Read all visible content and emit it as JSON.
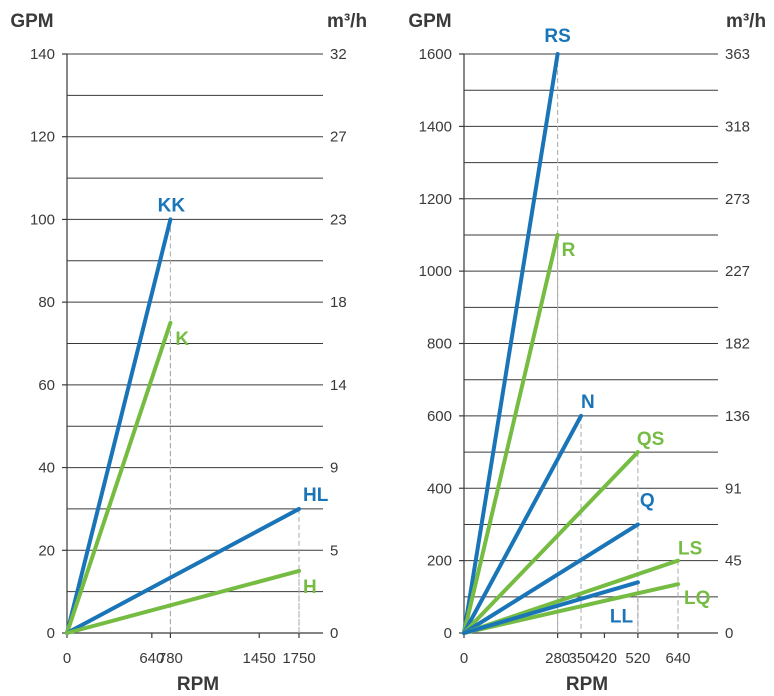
{
  "colors": {
    "blue": "#1a75b8",
    "green": "#76bc43",
    "text": "#3a3a3a"
  },
  "chart_data": [
    {
      "type": "line",
      "ylabel_left": "GPM",
      "ylabel_right": "m³/h",
      "xlabel": "RPM",
      "ylim": [
        0,
        140
      ],
      "xlim": [
        0,
        1750
      ],
      "left_ticks": [
        "0",
        "20",
        "40",
        "60",
        "80",
        "100",
        "120",
        "140"
      ],
      "right_ticks": [
        "0",
        "5",
        "9",
        "14",
        "18",
        "23",
        "27",
        "32"
      ],
      "x_ticks": [
        {
          "value": 0,
          "label": "0"
        },
        {
          "value": 640,
          "label": "640"
        },
        {
          "value": 780,
          "label": "780"
        },
        {
          "value": 1450,
          "label": "1450"
        },
        {
          "value": 1750,
          "label": "1750"
        }
      ],
      "series": [
        {
          "name": "KK",
          "color": "blue",
          "end": [
            780,
            100
          ]
        },
        {
          "name": "K",
          "color": "green",
          "end": [
            780,
            75
          ]
        },
        {
          "name": "HL",
          "color": "blue",
          "end": [
            1750,
            30
          ]
        },
        {
          "name": "H",
          "color": "green",
          "end": [
            1750,
            15
          ]
        }
      ]
    },
    {
      "type": "line",
      "ylabel_left": "GPM",
      "ylabel_right": "m³/h",
      "xlabel": "RPM",
      "ylim": [
        0,
        1600
      ],
      "xlim": [
        0,
        640
      ],
      "left_ticks": [
        "0",
        "200",
        "400",
        "600",
        "800",
        "1000",
        "1200",
        "1400",
        "1600"
      ],
      "right_ticks": [
        "0",
        "45",
        "91",
        "136",
        "182",
        "227",
        "273",
        "318",
        "363"
      ],
      "x_ticks": [
        {
          "value": 0,
          "label": "0"
        },
        {
          "value": 280,
          "label": "280"
        },
        {
          "value": 350,
          "label": "350"
        },
        {
          "value": 420,
          "label": "420"
        },
        {
          "value": 520,
          "label": "520"
        },
        {
          "value": 640,
          "label": "640"
        }
      ],
      "series": [
        {
          "name": "RS",
          "color": "blue",
          "end": [
            280,
            1600
          ]
        },
        {
          "name": "R",
          "color": "green",
          "end": [
            280,
            1100
          ]
        },
        {
          "name": "N",
          "color": "blue",
          "end": [
            350,
            600
          ]
        },
        {
          "name": "QS",
          "color": "green",
          "end": [
            520,
            500
          ]
        },
        {
          "name": "Q",
          "color": "blue",
          "end": [
            520,
            300
          ]
        },
        {
          "name": "LS",
          "color": "green",
          "end": [
            640,
            200
          ]
        },
        {
          "name": "LQ",
          "color": "green",
          "end": [
            640,
            135
          ]
        },
        {
          "name": "LL",
          "color": "blue",
          "end": [
            520,
            140
          ]
        }
      ]
    }
  ]
}
